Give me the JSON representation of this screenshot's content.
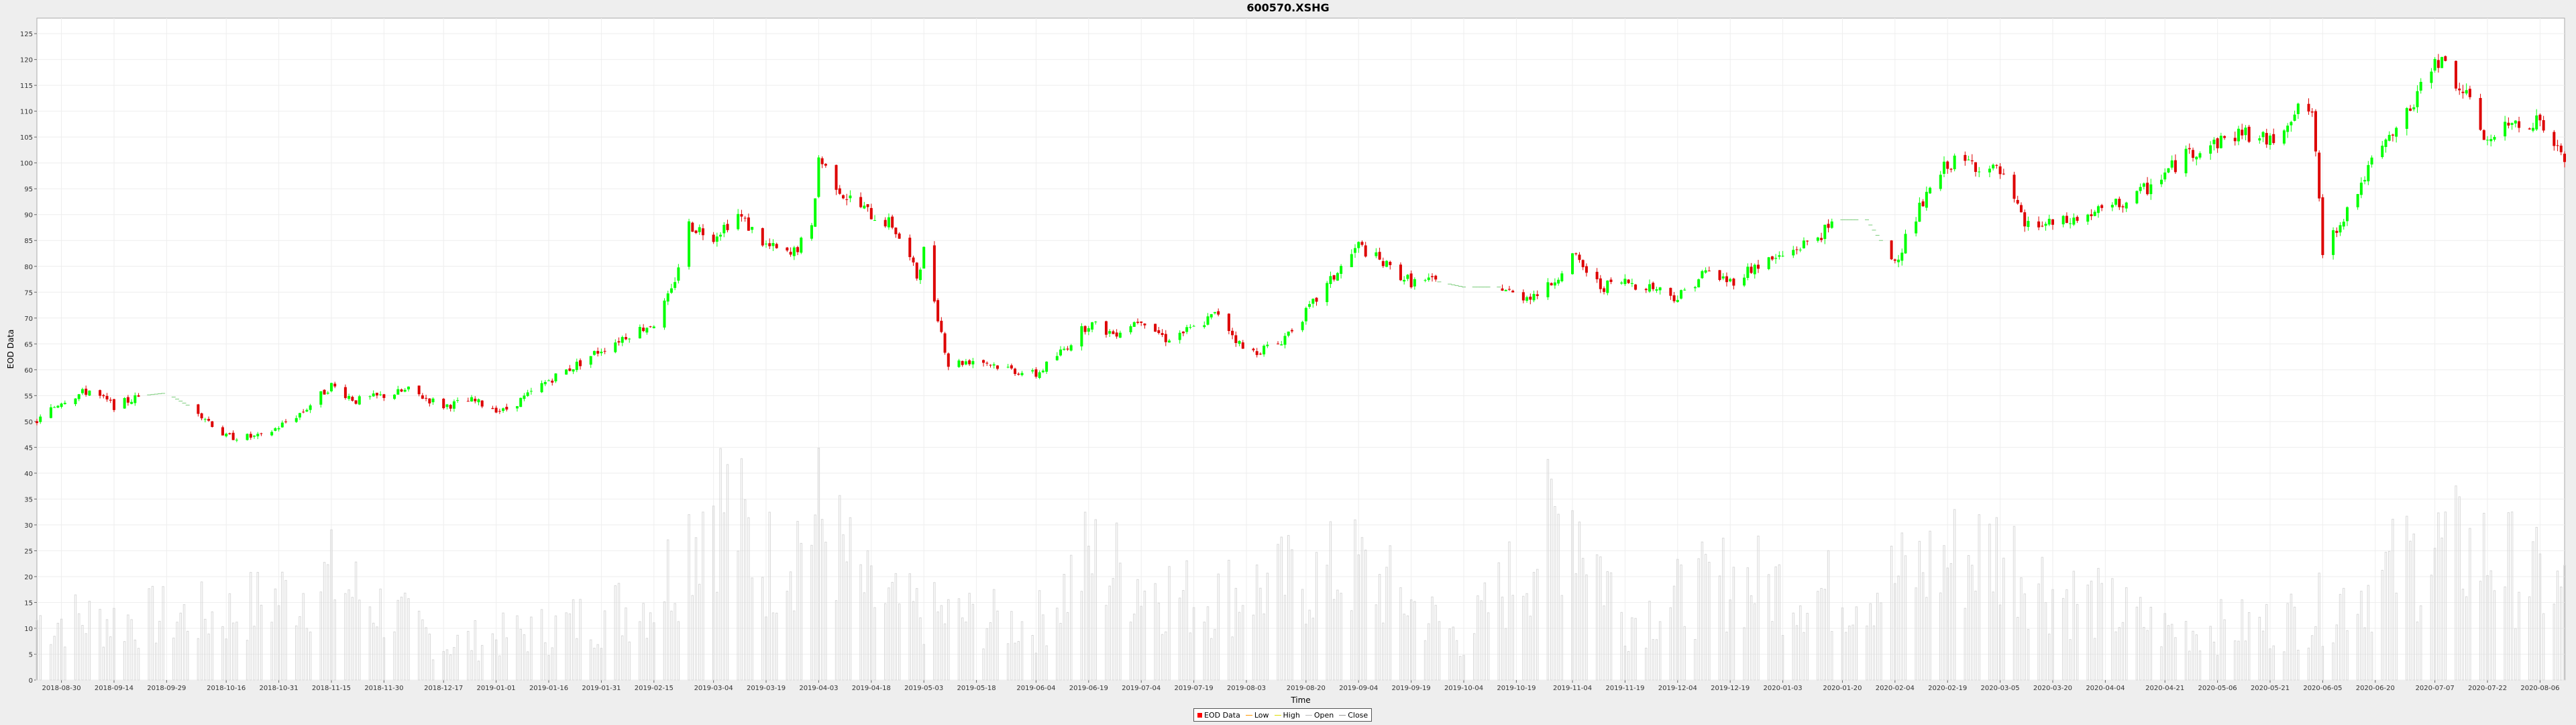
{
  "chart_data": {
    "type": "candlestick",
    "title": "600570.XSHG",
    "xlabel": "Time",
    "ylabel": "EOD Data",
    "xlim": [
      "2018-08-23",
      "2020-08-13"
    ],
    "ylim": [
      0,
      128
    ],
    "yticks": [
      0,
      5,
      10,
      15,
      20,
      25,
      30,
      35,
      40,
      45,
      50,
      55,
      60,
      65,
      70,
      75,
      80,
      85,
      90,
      95,
      100,
      105,
      110,
      115,
      120,
      125
    ],
    "xticks": [
      "2018-08-30",
      "2018-09-14",
      "2018-09-29",
      "2018-10-16",
      "2018-10-31",
      "2018-11-15",
      "2018-11-30",
      "2018-12-17",
      "2019-01-01",
      "2019-01-16",
      "2019-01-31",
      "2019-02-15",
      "2019-03-04",
      "2019-03-19",
      "2019-04-03",
      "2019-04-18",
      "2019-05-03",
      "2019-05-18",
      "2019-06-04",
      "2019-06-19",
      "2019-07-04",
      "2019-07-19",
      "2019-08-03",
      "2019-08-20",
      "2019-09-04",
      "2019-09-19",
      "2019-10-04",
      "2019-10-19",
      "2019-11-04",
      "2019-11-19",
      "2019-12-04",
      "2019-12-19",
      "2020-01-03",
      "2020-01-20",
      "2020-02-04",
      "2020-02-19",
      "2020-03-05",
      "2020-03-20",
      "2020-04-04",
      "2020-04-21",
      "2020-05-06",
      "2020-05-21",
      "2020-06-05",
      "2020-06-20",
      "2020-07-07",
      "2020-07-22",
      "2020-08-06"
    ],
    "grid": true,
    "legend_position": "bottom",
    "up_color": "#00ff00",
    "down_color": "#dd0000",
    "volume_color": "#d8d8d8",
    "price_path": [
      [
        "2018-08-23",
        50
      ],
      [
        "2018-08-30",
        54
      ],
      [
        "2018-09-07",
        56
      ],
      [
        "2018-09-14",
        53
      ],
      [
        "2018-09-22",
        55
      ],
      [
        "2018-09-29",
        55.5
      ],
      [
        "2018-10-08",
        52
      ],
      [
        "2018-10-16",
        47
      ],
      [
        "2018-10-22",
        47
      ],
      [
        "2018-10-26",
        47
      ],
      [
        "2018-10-31",
        49
      ],
      [
        "2018-11-07",
        52
      ],
      [
        "2018-11-15",
        57
      ],
      [
        "2018-11-22",
        54
      ],
      [
        "2018-11-30",
        55
      ],
      [
        "2018-12-07",
        56
      ],
      [
        "2018-12-17",
        53
      ],
      [
        "2018-12-25",
        54
      ],
      [
        "2019-01-03",
        52
      ],
      [
        "2019-01-10",
        55
      ],
      [
        "2019-01-16",
        58
      ],
      [
        "2019-01-24",
        61
      ],
      [
        "2019-01-31",
        64
      ],
      [
        "2019-02-08",
        67
      ],
      [
        "2019-02-15",
        69
      ],
      [
        "2019-02-20",
        75
      ],
      [
        "2019-02-25",
        88
      ],
      [
        "2019-03-04",
        86
      ],
      [
        "2019-03-11",
        90
      ],
      [
        "2019-03-19",
        84
      ],
      [
        "2019-03-26",
        82
      ],
      [
        "2019-04-01",
        87
      ],
      [
        "2019-04-03",
        101
      ],
      [
        "2019-04-10",
        94
      ],
      [
        "2019-04-18",
        90
      ],
      [
        "2019-04-24",
        88
      ],
      [
        "2019-04-28",
        83
      ],
      [
        "2019-05-01",
        78
      ],
      [
        "2019-05-03",
        83
      ],
      [
        "2019-05-10",
        61
      ],
      [
        "2019-05-18",
        62
      ],
      [
        "2019-05-28",
        60
      ],
      [
        "2019-06-04",
        59
      ],
      [
        "2019-06-12",
        64
      ],
      [
        "2019-06-19",
        69
      ],
      [
        "2019-06-26",
        67
      ],
      [
        "2019-07-04",
        70
      ],
      [
        "2019-07-11",
        66
      ],
      [
        "2019-07-19",
        68
      ],
      [
        "2019-07-26",
        71
      ],
      [
        "2019-08-03",
        63
      ],
      [
        "2019-08-12",
        65
      ],
      [
        "2019-08-20",
        71
      ],
      [
        "2019-08-28",
        78
      ],
      [
        "2019-09-04",
        84
      ],
      [
        "2019-09-12",
        80
      ],
      [
        "2019-09-19",
        77
      ],
      [
        "2019-09-27",
        77
      ],
      [
        "2019-10-04",
        76
      ],
      [
        "2019-10-10",
        76
      ],
      [
        "2019-10-15",
        76
      ],
      [
        "2019-10-19",
        74
      ],
      [
        "2019-10-27",
        75
      ],
      [
        "2019-11-04",
        82
      ],
      [
        "2019-11-12",
        76
      ],
      [
        "2019-11-19",
        77
      ],
      [
        "2019-11-27",
        76
      ],
      [
        "2019-12-04",
        74
      ],
      [
        "2019-12-12",
        79
      ],
      [
        "2019-12-19",
        77
      ],
      [
        "2019-12-26",
        80
      ],
      [
        "2020-01-03",
        82
      ],
      [
        "2020-01-11",
        85
      ],
      [
        "2020-01-20",
        89
      ],
      [
        "2020-01-27",
        89
      ],
      [
        "2020-02-04",
        81
      ],
      [
        "2020-02-11",
        91
      ],
      [
        "2020-02-19",
        100
      ],
      [
        "2020-02-26",
        100
      ],
      [
        "2020-03-05",
        98
      ],
      [
        "2020-03-12",
        88
      ],
      [
        "2020-03-20",
        88
      ],
      [
        "2020-03-27",
        89
      ],
      [
        "2020-04-04",
        91
      ],
      [
        "2020-04-12",
        93
      ],
      [
        "2020-04-21",
        98
      ],
      [
        "2020-04-28",
        102
      ],
      [
        "2020-05-06",
        104
      ],
      [
        "2020-05-13",
        106
      ],
      [
        "2020-05-21",
        104
      ],
      [
        "2020-05-28",
        110
      ],
      [
        "2020-06-02",
        110
      ],
      [
        "2020-06-05",
        83
      ],
      [
        "2020-06-12",
        91
      ],
      [
        "2020-06-20",
        101
      ],
      [
        "2020-06-27",
        107
      ],
      [
        "2020-07-03",
        114
      ],
      [
        "2020-07-07",
        121
      ],
      [
        "2020-07-15",
        114
      ],
      [
        "2020-07-22",
        104
      ],
      [
        "2020-07-30",
        108
      ],
      [
        "2020-08-06",
        108
      ],
      [
        "2020-08-13",
        100
      ]
    ],
    "volume_path": [
      [
        "2018-08-23",
        12
      ],
      [
        "2018-09-14",
        12
      ],
      [
        "2018-10-16",
        13
      ],
      [
        "2018-11-15",
        20
      ],
      [
        "2018-12-17",
        7
      ],
      [
        "2019-01-16",
        10
      ],
      [
        "2019-02-15",
        16
      ],
      [
        "2019-03-04",
        38
      ],
      [
        "2019-03-19",
        23
      ],
      [
        "2019-04-03",
        32
      ],
      [
        "2019-04-18",
        16
      ],
      [
        "2019-05-03",
        13
      ],
      [
        "2019-06-04",
        11
      ],
      [
        "2019-06-19",
        24
      ],
      [
        "2019-07-19",
        16
      ],
      [
        "2019-08-20",
        20
      ],
      [
        "2019-09-04",
        22
      ],
      [
        "2019-10-04",
        8
      ],
      [
        "2019-11-04",
        35
      ],
      [
        "2019-11-19",
        12
      ],
      [
        "2019-12-19",
        20
      ],
      [
        "2020-01-20",
        17
      ],
      [
        "2020-02-04",
        20
      ],
      [
        "2020-02-19",
        24
      ],
      [
        "2020-03-05",
        26
      ],
      [
        "2020-03-20",
        18
      ],
      [
        "2020-04-21",
        10
      ],
      [
        "2020-05-21",
        11
      ],
      [
        "2020-06-05",
        14
      ],
      [
        "2020-07-07",
        26
      ],
      [
        "2020-07-22",
        25
      ],
      [
        "2020-08-13",
        17
      ]
    ],
    "legend": [
      {
        "label": "EOD Data",
        "kind": "box",
        "color": "#ff0000"
      },
      {
        "label": "Low",
        "kind": "line",
        "color": "#ff9900"
      },
      {
        "label": "High",
        "kind": "line",
        "color": "#dddd00"
      },
      {
        "label": "Open",
        "kind": "line",
        "color": "#bbbbbb"
      },
      {
        "label": "Close",
        "kind": "line",
        "color": "#999999"
      }
    ]
  }
}
